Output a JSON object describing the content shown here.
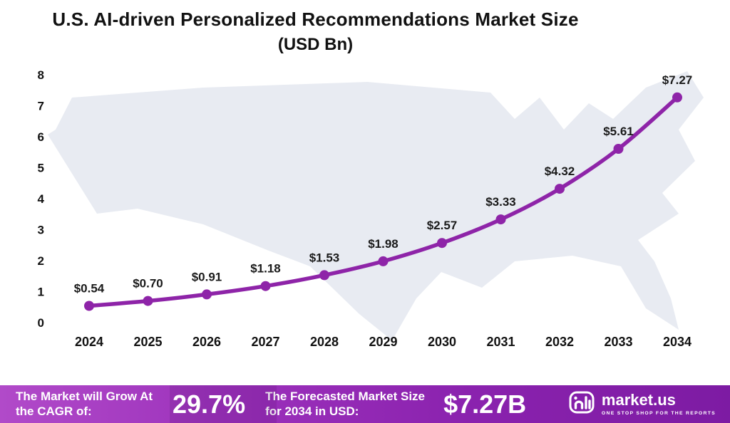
{
  "title": {
    "line1": "U.S. AI-driven Personalized Recommendations Market Size",
    "line2": "(USD Bn)"
  },
  "chart_data": {
    "type": "line",
    "x": [
      2024,
      2025,
      2026,
      2027,
      2028,
      2029,
      2030,
      2031,
      2032,
      2033,
      2034
    ],
    "values": [
      0.54,
      0.7,
      0.91,
      1.18,
      1.53,
      1.98,
      2.57,
      3.33,
      4.32,
      5.61,
      7.27
    ],
    "labels": [
      "$0.54",
      "$0.70",
      "$0.91",
      "$1.18",
      "$1.53",
      "$1.98",
      "$2.57",
      "$3.33",
      "$4.32",
      "$5.61",
      "$7.27"
    ],
    "title": "U.S. AI-driven Personalized Recommendations Market Size (USD Bn)",
    "xlabel": "",
    "ylabel": "",
    "ylim": [
      0,
      8
    ],
    "yticks": [
      0,
      1,
      2,
      3,
      4,
      5,
      6,
      7,
      8
    ],
    "grid": false,
    "legend": "none",
    "line_color": "#8e24a8",
    "marker_color": "#8e24a8"
  },
  "footer": {
    "cagr_label": "The Market will Grow At the CAGR of:",
    "cagr_value": "29.7%",
    "forecast_label": "The Forecasted Market Size for 2034 in USD:",
    "forecast_value": "$7.27B",
    "brand_name": "market.us",
    "brand_tagline": "ONE STOP SHOP FOR THE REPORTS",
    "accent_color": "#8a22ae"
  }
}
